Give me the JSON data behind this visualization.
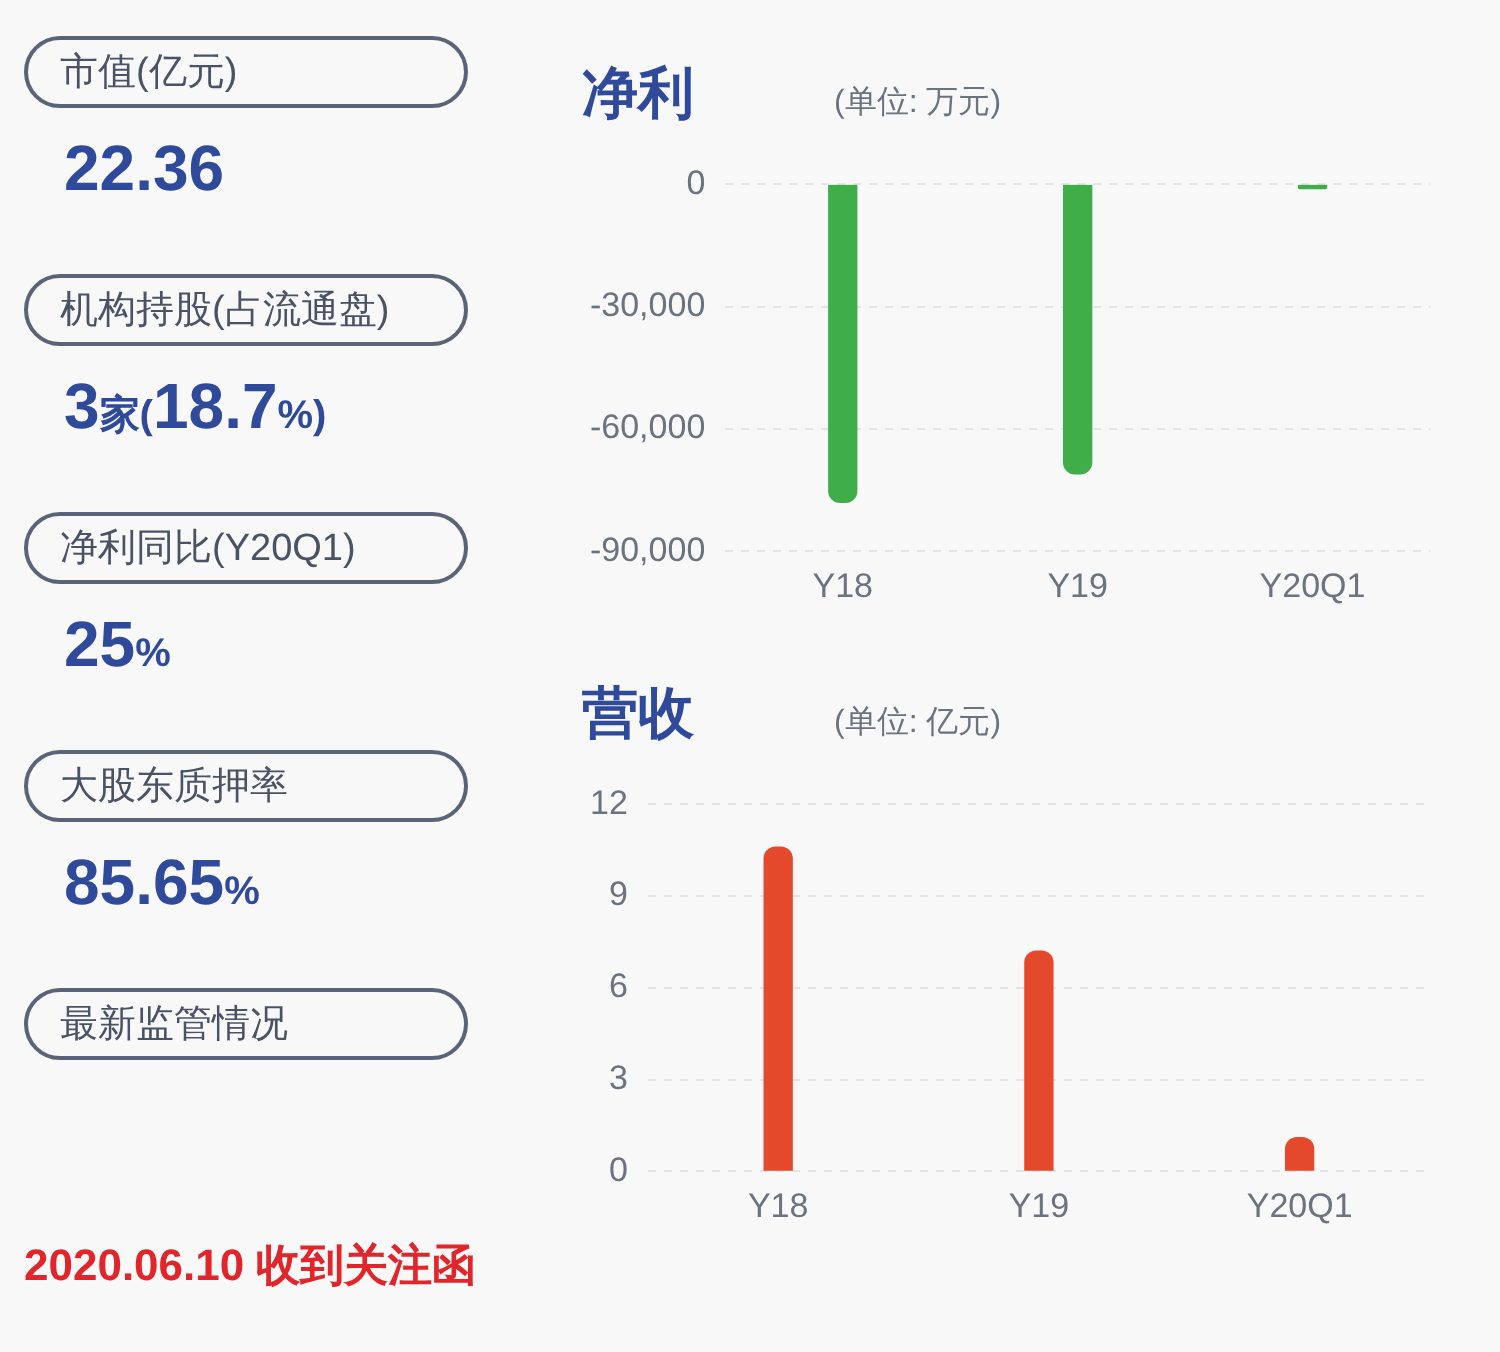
{
  "chart_data": [
    {
      "type": "other",
      "annotations": [
        "市值(亿元)",
        "22.36",
        "机构持股(占流通盘)",
        "3家(18.7%)",
        "净利同比(Y20Q1)",
        "25%",
        "大股东质押率",
        "85.65%",
        "最新监管情况",
        "2020.06.10 收到关注函"
      ]
    },
    {
      "type": "bar",
      "title": "净利",
      "subtitle": "(单位: 万元)",
      "categories": [
        "Y18",
        "Y19",
        "Y20Q1"
      ],
      "values": [
        -78000,
        -71000,
        -1000
      ],
      "color": "#3fae48",
      "ylim": [
        -90000,
        0
      ],
      "yticks": [
        {
          "value": -90000,
          "label": "-90,000"
        },
        {
          "value": -60000,
          "label": "-60,000"
        },
        {
          "value": -30000,
          "label": "-30,000"
        },
        0
      ],
      "grid": "y"
    },
    {
      "type": "bar",
      "title": "营收",
      "subtitle": "(单位: 亿元)",
      "categories": [
        "Y18",
        "Y19",
        "Y20Q1"
      ],
      "values": [
        10.6,
        7.2,
        1.1
      ],
      "color": "#e4492c",
      "ylim": [
        0,
        12
      ],
      "yticks": [
        0,
        3,
        6,
        9,
        12
      ],
      "grid": "y"
    }
  ]
}
